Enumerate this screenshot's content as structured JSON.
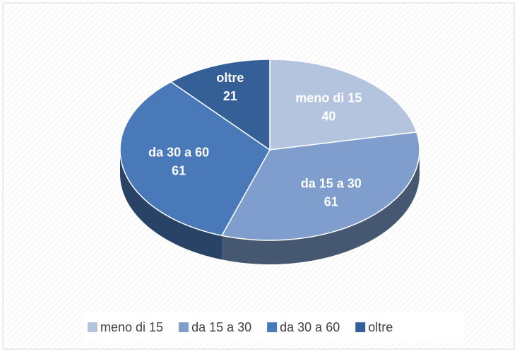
{
  "chart_data": {
    "type": "pie",
    "categories": [
      "meno di 15",
      "da 15 a 30",
      "da 30 a 60",
      "oltre"
    ],
    "values": [
      40,
      61,
      61,
      21
    ],
    "colors": [
      "#b4c4df",
      "#7f9ecd",
      "#4a79b9",
      "#355f97"
    ],
    "legend": "bottom"
  }
}
